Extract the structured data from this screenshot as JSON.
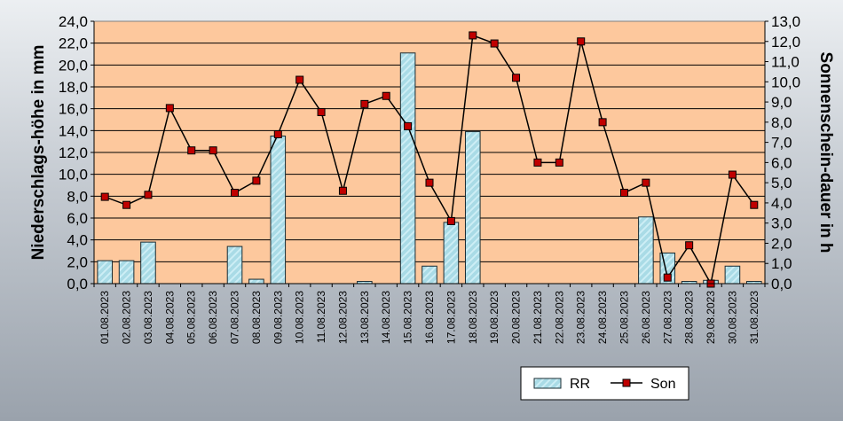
{
  "chart_data": {
    "type": "bar+line",
    "categories": [
      "01.08.2023",
      "02.08.2023",
      "03.08.2023",
      "04.08.2023",
      "05.08.2023",
      "06.08.2023",
      "07.08.2023",
      "08.08.2023",
      "09.08.2023",
      "10.08.2023",
      "11.08.2023",
      "12.08.2023",
      "13.08.2023",
      "14.08.2023",
      "15.08.2023",
      "16.08.2023",
      "17.08.2023",
      "18.08.2023",
      "19.08.2023",
      "20.08.2023",
      "21.08.2023",
      "22.08.2023",
      "23.08.2023",
      "24.08.2023",
      "25.08.2023",
      "26.08.2023",
      "27.08.2023",
      "28.08.2023",
      "29.08.2023",
      "30.08.2023",
      "31.08.2023"
    ],
    "series": [
      {
        "name": "RR",
        "kind": "bar",
        "axis": "left",
        "values": [
          2.1,
          2.1,
          3.8,
          0,
          0,
          0,
          3.4,
          0.4,
          13.5,
          0,
          0,
          0,
          0.2,
          0,
          21.1,
          1.6,
          5.6,
          13.9,
          0,
          0,
          0,
          0,
          0,
          0,
          0,
          6.1,
          2.8,
          0.2,
          0.3,
          1.6,
          0.2
        ]
      },
      {
        "name": "Son",
        "kind": "line",
        "axis": "right",
        "values": [
          4.3,
          3.9,
          4.4,
          8.7,
          6.6,
          6.6,
          4.5,
          5.1,
          7.4,
          10.1,
          8.5,
          4.6,
          8.9,
          9.3,
          7.8,
          5.0,
          3.1,
          12.3,
          11.9,
          10.2,
          6.0,
          6.0,
          12.0,
          8.0,
          4.5,
          5.0,
          0.3,
          1.9,
          0.0,
          5.4,
          3.9
        ]
      }
    ],
    "ylabel": "Niederschlags-höhe in mm",
    "y2label": "Sonnenschein-dauer in h",
    "ylim": [
      0,
      24
    ],
    "y2lim": [
      0,
      13
    ],
    "yticks": [
      "0,0",
      "2,0",
      "4,0",
      "6,0",
      "8,0",
      "10,0",
      "12,0",
      "14,0",
      "16,0",
      "18,0",
      "20,0",
      "22,0",
      "24,0"
    ],
    "y2ticks": [
      "0,0",
      "1,0",
      "2,0",
      "3,0",
      "4,0",
      "5,0",
      "6,0",
      "7,0",
      "8,0",
      "9,0",
      "10,0",
      "11,0",
      "12,0",
      "13,0"
    ],
    "grid": "horizontal",
    "legend_position": "bottom-right",
    "colors": {
      "plot_bg": "#fdc89d",
      "bar_fill": "#a9dbe6",
      "bar_stroke": "#1a2c33",
      "line": "#000000",
      "marker": "#c00000"
    }
  }
}
